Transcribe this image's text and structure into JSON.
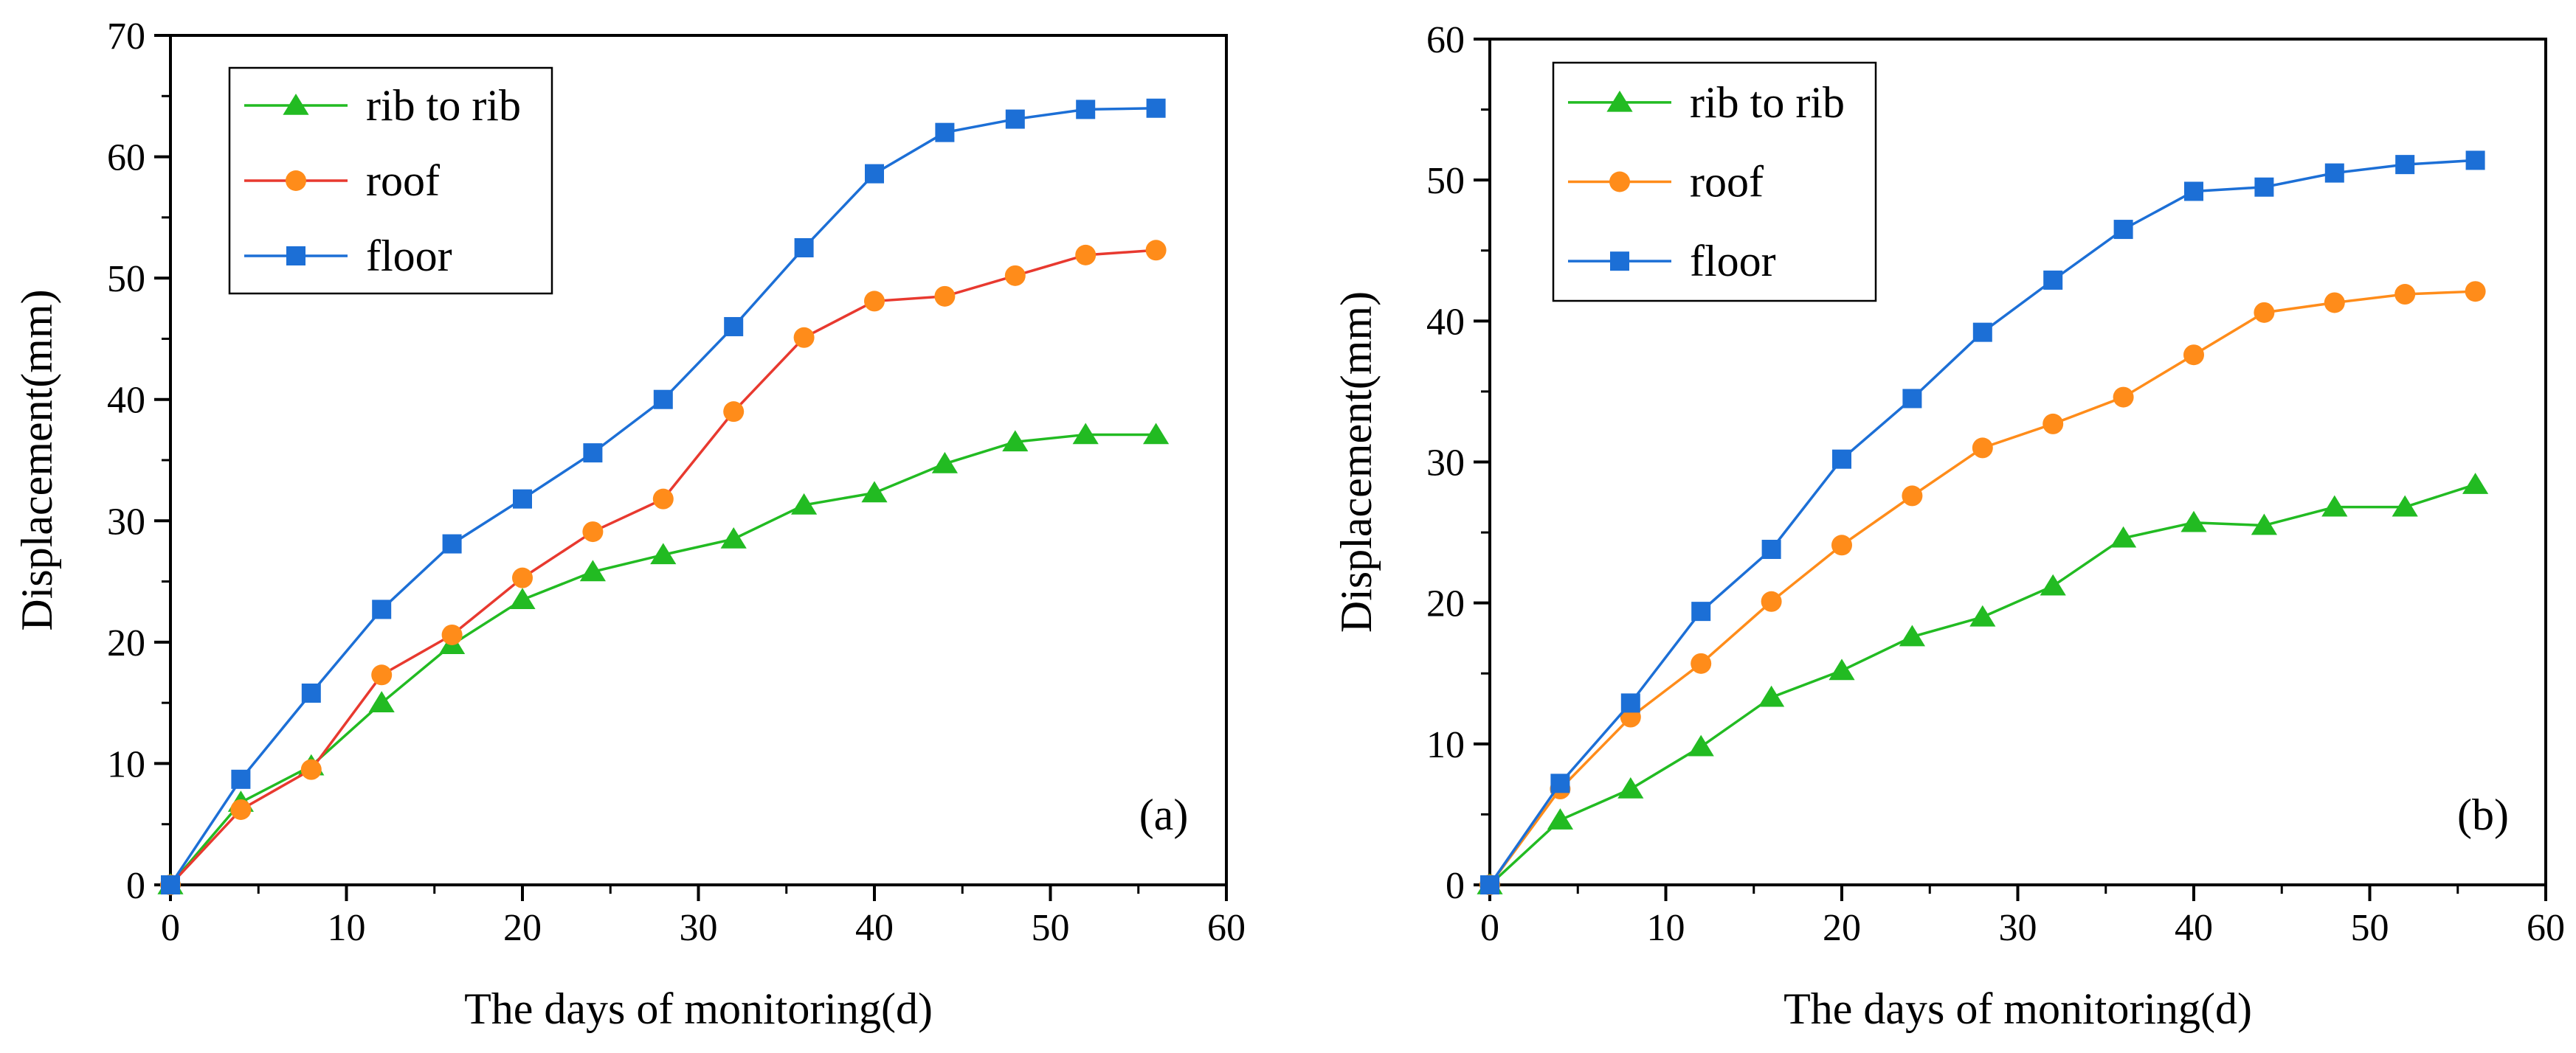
{
  "figure": {
    "background": "#ffffff"
  },
  "chart_data": [
    {
      "type": "line",
      "panel_label": "(a)",
      "xlabel": "The days of monitoring(d)",
      "ylabel": "Displacement(mm)",
      "xlim": [
        0,
        60
      ],
      "ylim": [
        0,
        70
      ],
      "xticks": [
        0,
        10,
        20,
        30,
        40,
        50,
        60
      ],
      "yticks": [
        0,
        10,
        20,
        30,
        40,
        50,
        60,
        70
      ],
      "grid": false,
      "legend_position": "top-left",
      "x": [
        0,
        4,
        8,
        12,
        16,
        20,
        24,
        28,
        32,
        36,
        40,
        44,
        48,
        52,
        56
      ],
      "series": [
        {
          "name": "rib to rib",
          "marker": "triangle",
          "color": "#22bb22",
          "values": [
            0,
            6.8,
            9.8,
            15.0,
            19.8,
            23.5,
            25.8,
            27.2,
            28.5,
            31.3,
            32.3,
            34.7,
            36.5,
            37.1,
            37.1
          ]
        },
        {
          "name": "roof",
          "marker": "circle",
          "color": "#e8392f",
          "marker_color": "#ff8c1a",
          "values": [
            0,
            6.2,
            9.5,
            17.3,
            20.6,
            25.3,
            29.1,
            31.8,
            39.0,
            45.1,
            48.1,
            48.5,
            50.2,
            51.9,
            52.3
          ]
        },
        {
          "name": "floor",
          "marker": "square",
          "color": "#1c6fd6",
          "values": [
            0,
            8.7,
            15.8,
            22.7,
            28.1,
            31.8,
            35.6,
            40.0,
            46.0,
            52.5,
            58.6,
            62.0,
            63.1,
            63.9,
            64.0
          ]
        }
      ]
    },
    {
      "type": "line",
      "panel_label": "(b)",
      "xlabel": "The days of monitoring(d)",
      "ylabel": "Displacement(mm)",
      "xlim": [
        0,
        60
      ],
      "ylim": [
        0,
        60
      ],
      "xticks": [
        0,
        10,
        20,
        30,
        40,
        50,
        60
      ],
      "yticks": [
        0,
        10,
        20,
        30,
        40,
        50,
        60
      ],
      "grid": false,
      "legend_position": "top-left",
      "x": [
        0,
        4,
        8,
        12,
        16,
        20,
        24,
        28,
        32,
        36,
        40,
        44,
        48,
        52,
        56
      ],
      "series": [
        {
          "name": "rib to rib",
          "marker": "triangle",
          "color": "#22bb22",
          "values": [
            0,
            4.6,
            6.8,
            9.8,
            13.3,
            15.2,
            17.6,
            19.0,
            21.2,
            24.6,
            25.7,
            25.5,
            26.8,
            26.8,
            28.4
          ]
        },
        {
          "name": "roof",
          "marker": "circle",
          "color": "#ff8c1a",
          "values": [
            0,
            6.8,
            11.9,
            15.7,
            20.1,
            24.1,
            27.6,
            31.0,
            32.7,
            34.6,
            37.6,
            40.6,
            41.3,
            41.9,
            42.1
          ]
        },
        {
          "name": "floor",
          "marker": "square",
          "color": "#1c6fd6",
          "values": [
            0,
            7.2,
            12.9,
            19.4,
            23.8,
            30.2,
            34.5,
            39.2,
            42.9,
            46.5,
            49.2,
            49.5,
            50.5,
            51.1,
            51.4
          ]
        }
      ]
    }
  ]
}
